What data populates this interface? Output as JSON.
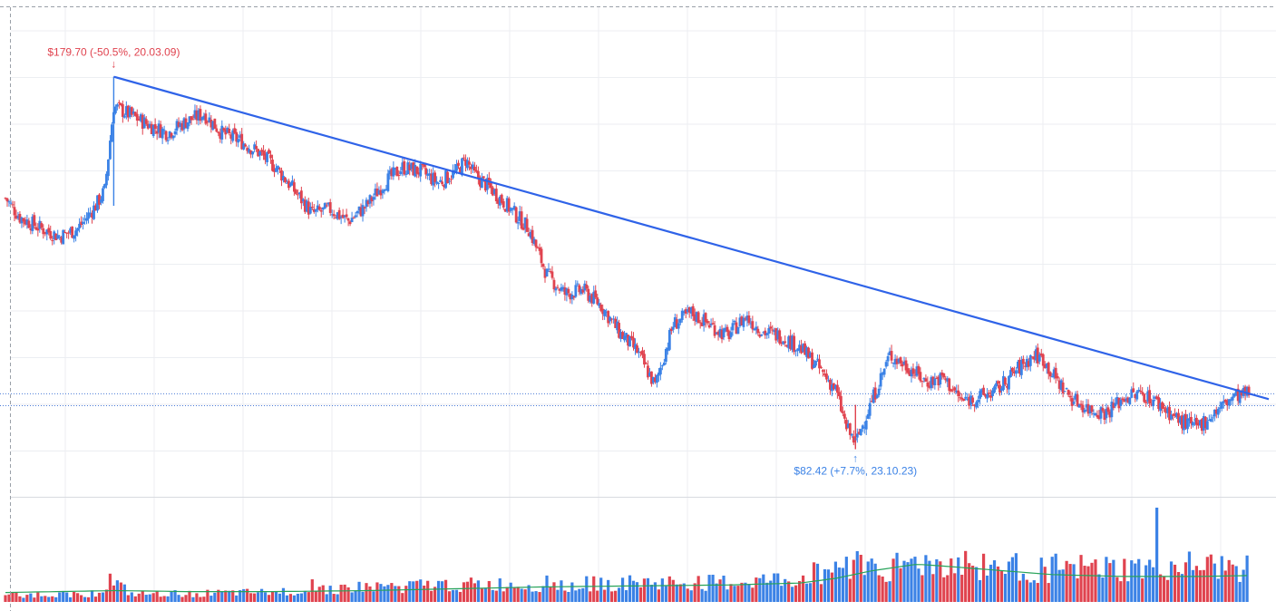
{
  "colors": {
    "up": "#3b82e6",
    "down": "#e0434f",
    "trendline": "#2f63e8",
    "volume_ma": "#27a35a",
    "grid": "#eceef2",
    "crosshair": "#9aa0a8",
    "price_line": "#4a7bd8"
  },
  "chart_data": {
    "type": "candlestick",
    "title": "",
    "xlabel": "",
    "ylabel": "",
    "ylim": [
      70,
      195
    ],
    "volume_ylim": [
      0,
      100
    ],
    "grid": true,
    "legend": "none",
    "max_annotation": {
      "label": "$179.70 (-50.5%, 20.03.09)",
      "price": 179.7,
      "date": "20.03.09",
      "bar_index": 60
    },
    "min_annotation": {
      "label": "$82.42 (+7.7%, 23.10.23)",
      "price": 82.42,
      "date": "23.10.23",
      "bar_index": 471
    },
    "trendline": {
      "start": {
        "bar_index": 60,
        "price": 179.7
      },
      "end": {
        "bar_index": 700,
        "price": 95.5
      }
    },
    "current_price_lines": [
      96.9,
      93.8
    ],
    "bars": 690,
    "anchors": [
      [
        0,
        148
      ],
      [
        8,
        143
      ],
      [
        20,
        140
      ],
      [
        30,
        138
      ],
      [
        40,
        140
      ],
      [
        50,
        146
      ],
      [
        55,
        150
      ],
      [
        60,
        172
      ],
      [
        68,
        170
      ],
      [
        80,
        167
      ],
      [
        90,
        165
      ],
      [
        100,
        168
      ],
      [
        110,
        170
      ],
      [
        120,
        165
      ],
      [
        130,
        163
      ],
      [
        140,
        160
      ],
      [
        150,
        156
      ],
      [
        160,
        150
      ],
      [
        170,
        144
      ],
      [
        180,
        145
      ],
      [
        190,
        142
      ],
      [
        200,
        146
      ],
      [
        210,
        152
      ],
      [
        220,
        156
      ],
      [
        230,
        155
      ],
      [
        240,
        152
      ],
      [
        250,
        155
      ],
      [
        255,
        158
      ],
      [
        260,
        154
      ],
      [
        270,
        150
      ],
      [
        280,
        145
      ],
      [
        290,
        140
      ],
      [
        300,
        128
      ],
      [
        310,
        123
      ],
      [
        320,
        124
      ],
      [
        330,
        120
      ],
      [
        340,
        113
      ],
      [
        350,
        108
      ],
      [
        360,
        99
      ],
      [
        370,
        115
      ],
      [
        380,
        118
      ],
      [
        390,
        115
      ],
      [
        400,
        112
      ],
      [
        410,
        117
      ],
      [
        420,
        113
      ],
      [
        430,
        112
      ],
      [
        440,
        109
      ],
      [
        450,
        104
      ],
      [
        460,
        98
      ],
      [
        466,
        88
      ],
      [
        471,
        84
      ],
      [
        480,
        95
      ],
      [
        490,
        107
      ],
      [
        500,
        104
      ],
      [
        510,
        100
      ],
      [
        520,
        101
      ],
      [
        530,
        95
      ],
      [
        540,
        96
      ],
      [
        550,
        98
      ],
      [
        560,
        103
      ],
      [
        570,
        107
      ],
      [
        575,
        106
      ],
      [
        580,
        102
      ],
      [
        590,
        96
      ],
      [
        600,
        93
      ],
      [
        610,
        92
      ],
      [
        620,
        96
      ],
      [
        630,
        97
      ],
      [
        640,
        94
      ],
      [
        650,
        90
      ],
      [
        660,
        88
      ],
      [
        670,
        92
      ],
      [
        680,
        96
      ],
      [
        690,
        97
      ]
    ],
    "volume_anchors": [
      [
        0,
        7
      ],
      [
        50,
        9
      ],
      [
        58,
        20
      ],
      [
        62,
        18
      ],
      [
        70,
        8
      ],
      [
        150,
        10
      ],
      [
        170,
        14
      ],
      [
        250,
        18
      ],
      [
        300,
        18
      ],
      [
        350,
        20
      ],
      [
        400,
        20
      ],
      [
        440,
        24
      ],
      [
        460,
        38
      ],
      [
        470,
        42
      ],
      [
        490,
        37
      ],
      [
        510,
        40
      ],
      [
        530,
        40
      ],
      [
        560,
        36
      ],
      [
        600,
        35
      ],
      [
        620,
        34
      ],
      [
        640,
        36
      ],
      [
        650,
        38
      ],
      [
        670,
        36
      ],
      [
        690,
        35
      ]
    ],
    "volume_spikes": [
      [
        58,
        30
      ],
      [
        170,
        24
      ],
      [
        300,
        28
      ],
      [
        467,
        48
      ],
      [
        475,
        50
      ],
      [
        480,
        46
      ],
      [
        504,
        48
      ],
      [
        592,
        40
      ],
      [
        638,
        100
      ],
      [
        654,
        42
      ],
      [
        682,
        38
      ]
    ],
    "volume_ma_anchors": [
      [
        0,
        10
      ],
      [
        60,
        12
      ],
      [
        100,
        11
      ],
      [
        150,
        11
      ],
      [
        200,
        12
      ],
      [
        250,
        14
      ],
      [
        300,
        16
      ],
      [
        350,
        17
      ],
      [
        400,
        18
      ],
      [
        440,
        20
      ],
      [
        460,
        25
      ],
      [
        480,
        33
      ],
      [
        505,
        40
      ],
      [
        520,
        38
      ],
      [
        540,
        35
      ],
      [
        560,
        32
      ],
      [
        580,
        29
      ],
      [
        600,
        28
      ],
      [
        620,
        27
      ],
      [
        640,
        27
      ],
      [
        660,
        27
      ],
      [
        690,
        28
      ]
    ]
  }
}
